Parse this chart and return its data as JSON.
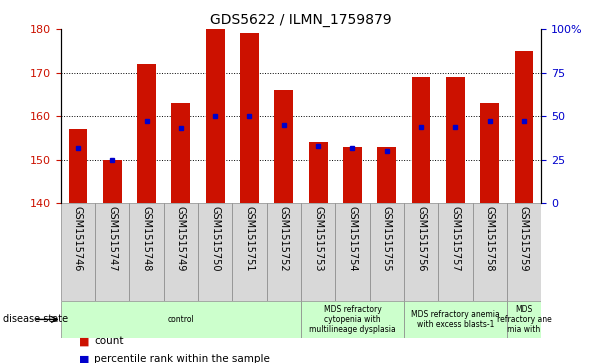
{
  "title": "GDS5622 / ILMN_1759879",
  "samples": [
    "GSM1515746",
    "GSM1515747",
    "GSM1515748",
    "GSM1515749",
    "GSM1515750",
    "GSM1515751",
    "GSM1515752",
    "GSM1515753",
    "GSM1515754",
    "GSM1515755",
    "GSM1515756",
    "GSM1515757",
    "GSM1515758",
    "GSM1515759"
  ],
  "counts": [
    157,
    150,
    172,
    163,
    180,
    179,
    166,
    154,
    153,
    153,
    169,
    169,
    163,
    175
  ],
  "percentile_ranks": [
    32,
    25,
    47,
    43,
    50,
    50,
    45,
    33,
    32,
    30,
    44,
    44,
    47,
    47
  ],
  "ylim_left": [
    140,
    180
  ],
  "yticks_left": [
    140,
    150,
    160,
    170,
    180
  ],
  "yticks_right": [
    0,
    25,
    50,
    75,
    100
  ],
  "bar_color": "#cc1100",
  "marker_color": "#0000cc",
  "bar_bottom": 140,
  "group_boundaries": [
    0,
    7,
    10,
    13,
    14
  ],
  "group_labels": [
    "control",
    "MDS refractory\ncytopenia with\nmultilineage dysplasia",
    "MDS refractory anemia\nwith excess blasts-1",
    "MDS\nrefractory ane\nmia with"
  ],
  "group_color": "#ccffcc",
  "tick_box_color": "#d8d8d8",
  "disease_state_label": "disease state",
  "legend_count_label": "count",
  "legend_pct_label": "percentile rank within the sample",
  "title_fontsize": 10,
  "tick_label_fontsize": 7,
  "group_label_fontsize": 5.5,
  "legend_fontsize": 7.5,
  "axis_tick_fontsize": 8
}
